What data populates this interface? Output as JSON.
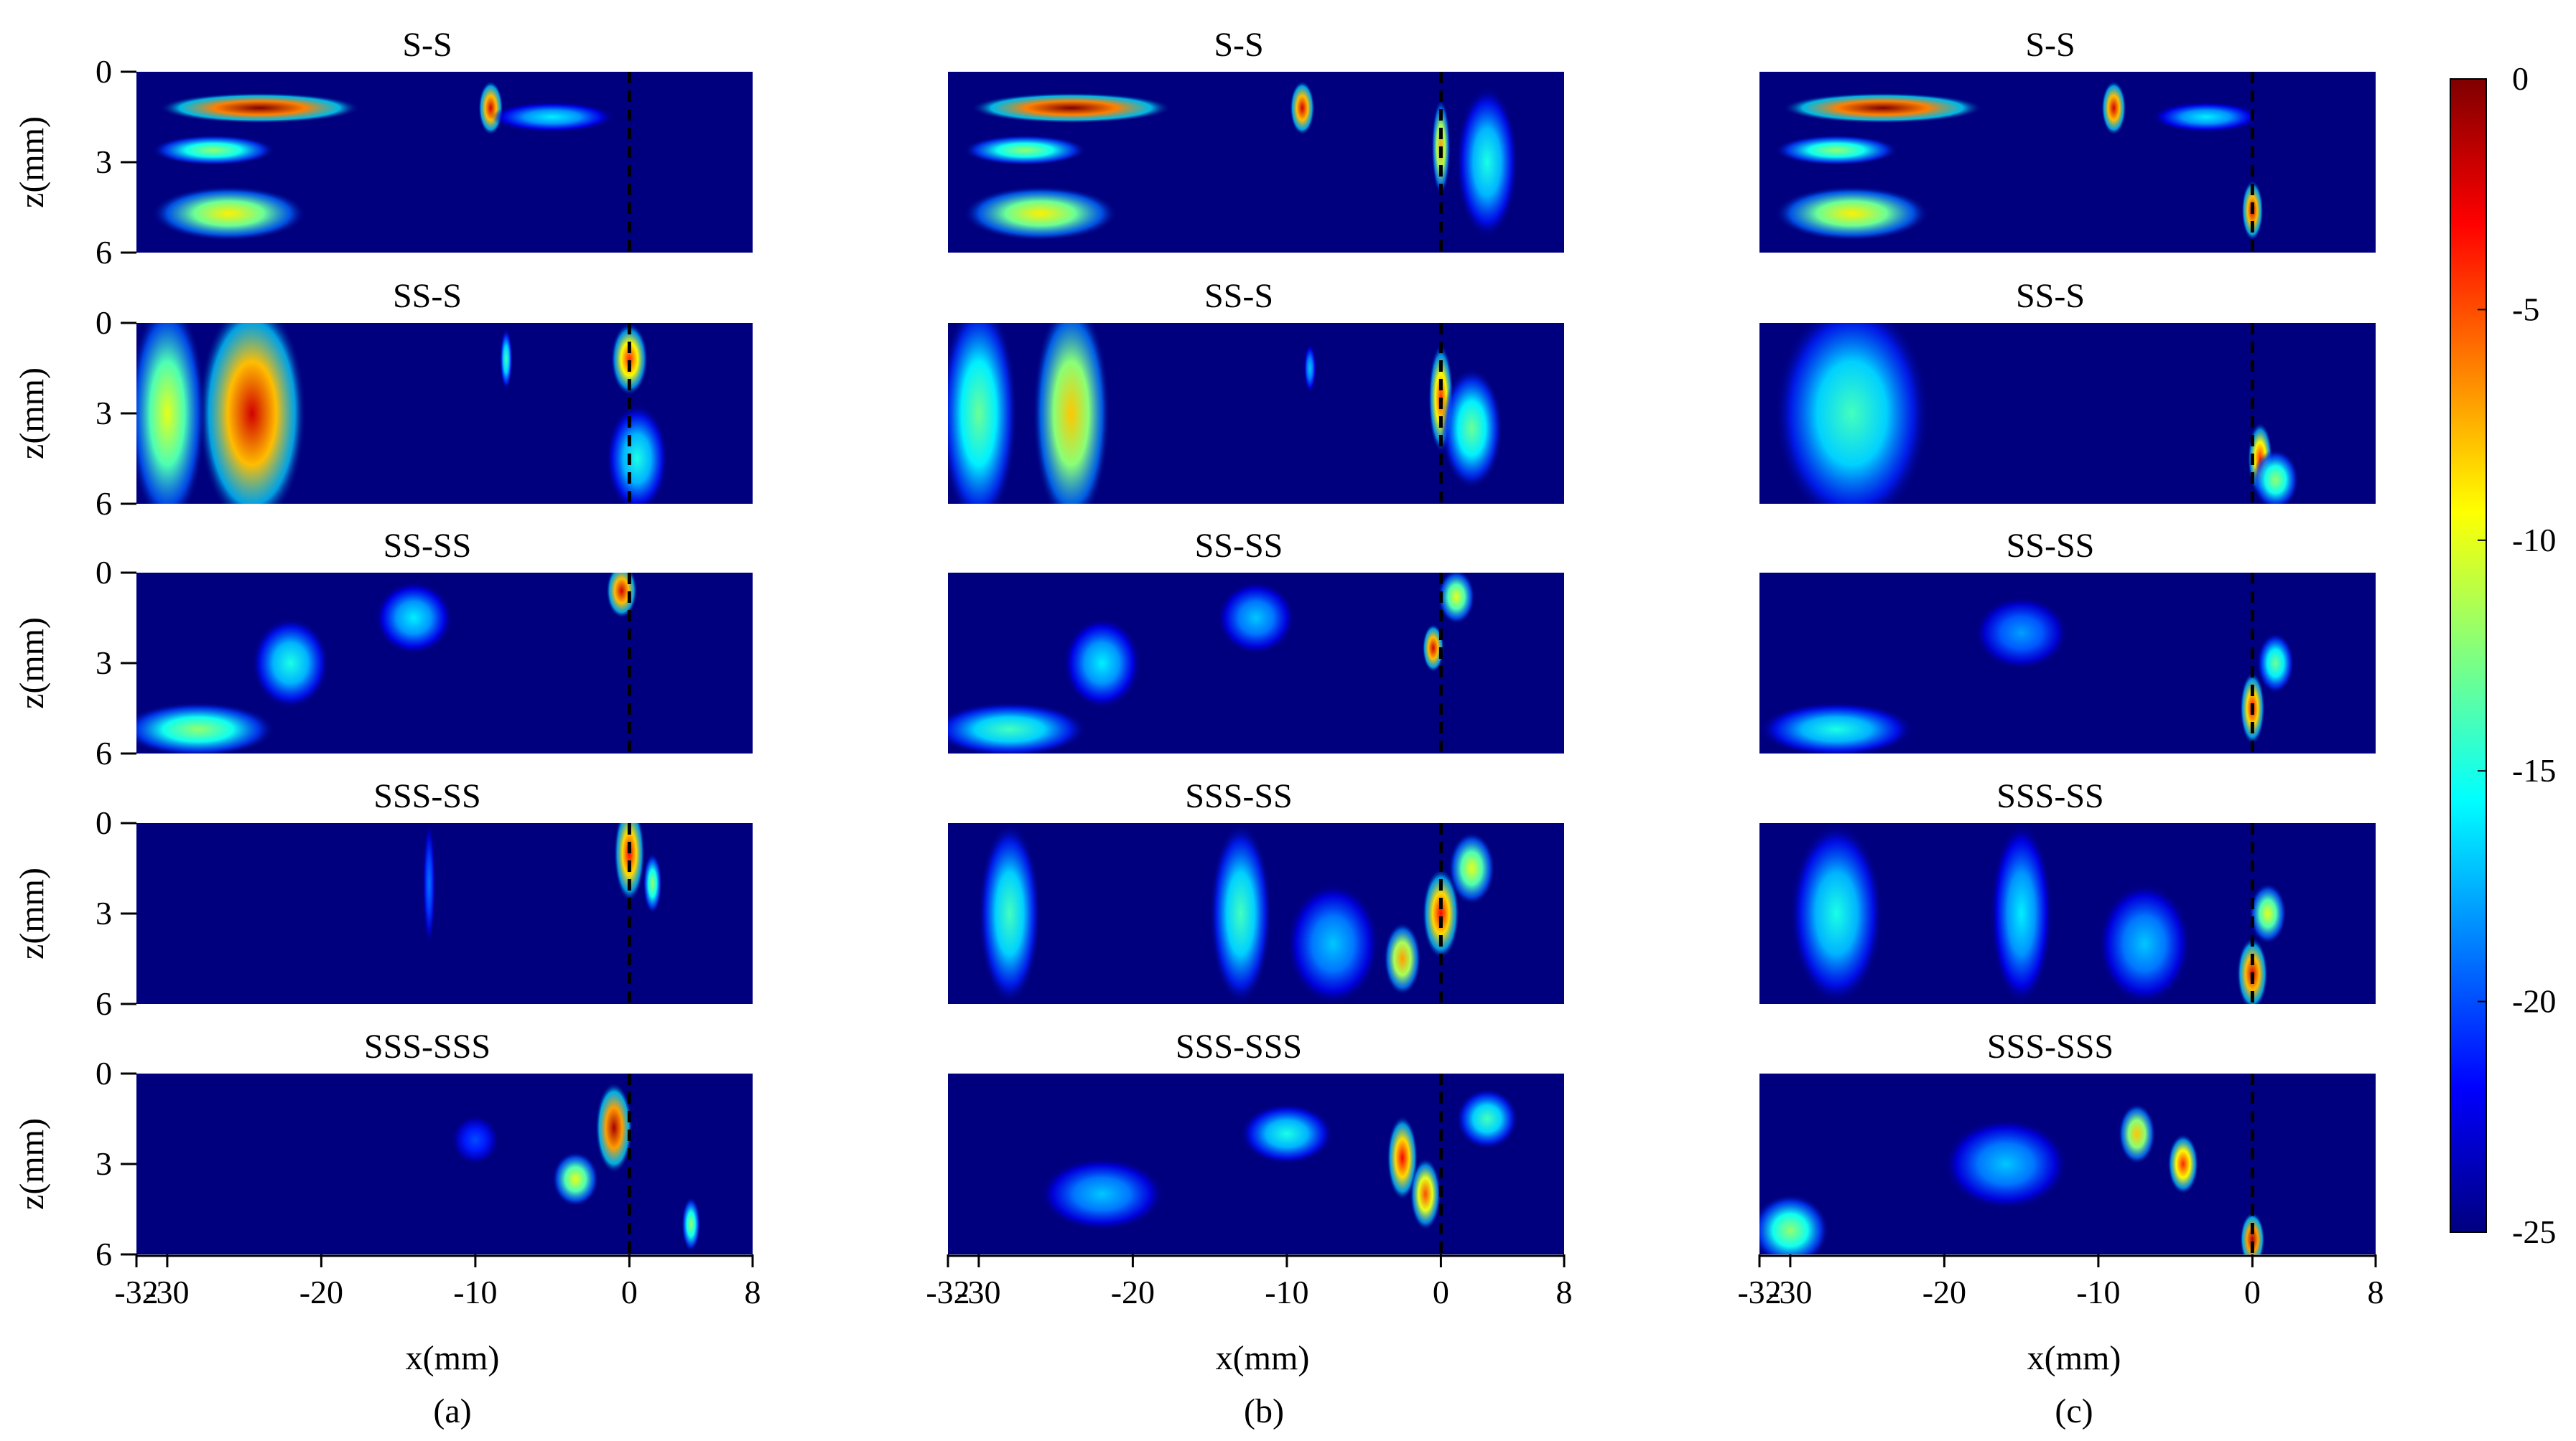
{
  "columns": [
    {
      "subcaption": "(a)",
      "xlabel": "x(mm)"
    },
    {
      "subcaption": "(b)",
      "xlabel": "x(mm)"
    },
    {
      "subcaption": "(c)",
      "xlabel": "x(mm)"
    }
  ],
  "row_titles": [
    "S-S",
    "SS-S",
    "SS-SS",
    "SSS-SS",
    "SSS-SSS"
  ],
  "ylabel": "z(mm)",
  "colorbar": {
    "ticks": [
      "0",
      "-5",
      "-10",
      "-15",
      "-20",
      "-25"
    ],
    "colormap": [
      "#00007f",
      "#0000ff",
      "#0080ff",
      "#00ffff",
      "#80ff80",
      "#ffff00",
      "#ff8000",
      "#ff0000",
      "#7f0000"
    ]
  },
  "chart_data": {
    "type": "heatmap",
    "layout": "5 rows x 3 columns of panels",
    "colorscale": "jet",
    "zrange": [
      -25,
      0
    ],
    "xlim": [
      -32,
      8
    ],
    "ylim": [
      0,
      6
    ],
    "x_ticks": [
      -32,
      -30,
      -20,
      -10,
      0,
      8
    ],
    "x_tick_labels": [
      "-32",
      "-30",
      "-20",
      "-10",
      "0",
      "8"
    ],
    "y_ticks": [
      0,
      3,
      6
    ],
    "y_tick_labels": [
      "0",
      "3",
      "6"
    ],
    "y_reversed": true,
    "reference_line_x": 0,
    "panels": [
      [
        {
          "title": "S-S",
          "blobs": [
            {
              "x": -24,
              "z": 1.2,
              "rx": 6.5,
              "rz": 0.5,
              "level": 0
            },
            {
              "x": -9,
              "z": 1.2,
              "rx": 0.8,
              "rz": 0.9,
              "level": -2
            },
            {
              "x": -26,
              "z": 4.7,
              "rx": 5.0,
              "rz": 0.9,
              "level": -9
            },
            {
              "x": -27,
              "z": 2.6,
              "rx": 4.0,
              "rz": 0.5,
              "level": -12
            },
            {
              "x": -5,
              "z": 1.5,
              "rx": 4.0,
              "rz": 0.5,
              "level": -16
            }
          ]
        },
        {
          "title": "SS-S",
          "blobs": [
            {
              "x": -24.5,
              "z": 3,
              "rx": 3.5,
              "rz": 3.8,
              "level": -2
            },
            {
              "x": -30,
              "z": 3,
              "rx": 2.5,
              "rz": 3.8,
              "level": -10
            },
            {
              "x": 0,
              "z": 1.2,
              "rx": 1.2,
              "rz": 1.2,
              "level": -4
            },
            {
              "x": 0.5,
              "z": 4.5,
              "rx": 2.0,
              "rz": 1.8,
              "level": -15
            },
            {
              "x": -8,
              "z": 1.2,
              "rx": 0.4,
              "rz": 1.0,
              "level": -14
            }
          ]
        },
        {
          "title": "SS-SS",
          "blobs": [
            {
              "x": -0.5,
              "z": 0.6,
              "rx": 1.0,
              "rz": 0.9,
              "level": -2
            },
            {
              "x": -28,
              "z": 5.2,
              "rx": 5.0,
              "rz": 0.9,
              "level": -12
            },
            {
              "x": -22,
              "z": 3.0,
              "rx": 2.5,
              "rz": 1.5,
              "level": -15
            },
            {
              "x": -14,
              "z": 1.5,
              "rx": 2.5,
              "rz": 1.2,
              "level": -16
            }
          ]
        },
        {
          "title": "SSS-SS",
          "blobs": [
            {
              "x": 0,
              "z": 1.0,
              "rx": 1.0,
              "rz": 1.6,
              "level": -3
            },
            {
              "x": 1.5,
              "z": 2.0,
              "rx": 0.6,
              "rz": 1.0,
              "level": -12
            },
            {
              "x": -13,
              "z": 2.0,
              "rx": 0.4,
              "rz": 2.0,
              "level": -19
            }
          ]
        },
        {
          "title": "SSS-SSS",
          "blobs": [
            {
              "x": -1,
              "z": 1.8,
              "rx": 1.2,
              "rz": 1.5,
              "level": -1
            },
            {
              "x": -3.5,
              "z": 3.5,
              "rx": 1.5,
              "rz": 0.9,
              "level": -10
            },
            {
              "x": 4,
              "z": 5.0,
              "rx": 0.6,
              "rz": 0.9,
              "level": -12
            },
            {
              "x": -10,
              "z": 2.2,
              "rx": 1.5,
              "rz": 0.8,
              "level": -20
            }
          ]
        }
      ],
      [
        {
          "title": "S-S",
          "blobs": [
            {
              "x": -24,
              "z": 1.2,
              "rx": 6.5,
              "rz": 0.5,
              "level": 0
            },
            {
              "x": -9,
              "z": 1.2,
              "rx": 0.8,
              "rz": 0.9,
              "level": -2
            },
            {
              "x": -26,
              "z": 4.7,
              "rx": 5.0,
              "rz": 0.9,
              "level": -9
            },
            {
              "x": -27,
              "z": 2.6,
              "rx": 4.0,
              "rz": 0.5,
              "level": -12
            },
            {
              "x": 0,
              "z": 2.5,
              "rx": 0.6,
              "rz": 1.6,
              "level": -7
            },
            {
              "x": 3,
              "z": 3.0,
              "rx": 2.0,
              "rz": 2.5,
              "level": -15
            }
          ]
        },
        {
          "title": "SS-S",
          "blobs": [
            {
              "x": -24,
              "z": 3,
              "rx": 2.5,
              "rz": 3.8,
              "level": -8
            },
            {
              "x": -30,
              "z": 3,
              "rx": 2.5,
              "rz": 3.8,
              "level": -13
            },
            {
              "x": 0,
              "z": 2.5,
              "rx": 0.8,
              "rz": 1.8,
              "level": -4
            },
            {
              "x": 2,
              "z": 3.5,
              "rx": 2.0,
              "rz": 2.0,
              "level": -13
            },
            {
              "x": -8.5,
              "z": 1.5,
              "rx": 0.4,
              "rz": 0.8,
              "level": -17
            }
          ]
        },
        {
          "title": "SS-SS",
          "blobs": [
            {
              "x": -0.5,
              "z": 2.5,
              "rx": 0.7,
              "rz": 0.8,
              "level": -2
            },
            {
              "x": 1,
              "z": 0.8,
              "rx": 1.2,
              "rz": 0.9,
              "level": -10
            },
            {
              "x": -28,
              "z": 5.2,
              "rx": 5.0,
              "rz": 0.9,
              "level": -14
            },
            {
              "x": -22,
              "z": 3.0,
              "rx": 2.5,
              "rz": 1.5,
              "level": -16
            },
            {
              "x": -12,
              "z": 1.5,
              "rx": 2.5,
              "rz": 1.2,
              "level": -17
            }
          ]
        },
        {
          "title": "SSS-SS",
          "blobs": [
            {
              "x": 0,
              "z": 3.0,
              "rx": 1.2,
              "rz": 1.5,
              "level": -3
            },
            {
              "x": -2.5,
              "z": 4.5,
              "rx": 1.2,
              "rz": 1.2,
              "level": -7
            },
            {
              "x": 2,
              "z": 1.5,
              "rx": 1.5,
              "rz": 1.2,
              "level": -10
            },
            {
              "x": -28,
              "z": 3.0,
              "rx": 2.0,
              "rz": 3.0,
              "level": -14
            },
            {
              "x": -13,
              "z": 3.0,
              "rx": 2.0,
              "rz": 3.0,
              "level": -14
            },
            {
              "x": -7,
              "z": 4.0,
              "rx": 3.0,
              "rz": 2.0,
              "level": -17
            }
          ]
        },
        {
          "title": "SSS-SSS",
          "blobs": [
            {
              "x": -2.5,
              "z": 2.8,
              "rx": 1.0,
              "rz": 1.4,
              "level": -3
            },
            {
              "x": -1,
              "z": 4.0,
              "rx": 1.0,
              "rz": 1.2,
              "level": -5
            },
            {
              "x": -10,
              "z": 2.0,
              "rx": 3.0,
              "rz": 1.0,
              "level": -15
            },
            {
              "x": -22,
              "z": 4.0,
              "rx": 4.0,
              "rz": 1.2,
              "level": -17
            },
            {
              "x": 3,
              "z": 1.5,
              "rx": 2.0,
              "rz": 1.0,
              "level": -14
            }
          ]
        }
      ],
      [
        {
          "title": "S-S",
          "blobs": [
            {
              "x": -24,
              "z": 1.2,
              "rx": 6.5,
              "rz": 0.5,
              "level": 0
            },
            {
              "x": -9,
              "z": 1.2,
              "rx": 0.8,
              "rz": 0.9,
              "level": -2
            },
            {
              "x": -26,
              "z": 4.7,
              "rx": 5.0,
              "rz": 0.9,
              "level": -9
            },
            {
              "x": -27,
              "z": 2.6,
              "rx": 4.0,
              "rz": 0.5,
              "level": -12
            },
            {
              "x": 0,
              "z": 4.6,
              "rx": 0.7,
              "rz": 1.0,
              "level": -2
            },
            {
              "x": -3,
              "z": 1.5,
              "rx": 3.5,
              "rz": 0.5,
              "level": -16
            }
          ]
        },
        {
          "title": "SS-S",
          "blobs": [
            {
              "x": -26,
              "z": 3,
              "rx": 5.0,
              "rz": 3.8,
              "level": -14
            },
            {
              "x": 0.5,
              "z": 4.5,
              "rx": 0.8,
              "rz": 1.2,
              "level": -4
            },
            {
              "x": 1.5,
              "z": 5.2,
              "rx": 1.5,
              "rz": 1.0,
              "level": -12
            }
          ]
        },
        {
          "title": "SS-SS",
          "blobs": [
            {
              "x": 0,
              "z": 4.5,
              "rx": 0.8,
              "rz": 1.2,
              "level": -3
            },
            {
              "x": 1.5,
              "z": 3.0,
              "rx": 1.2,
              "rz": 1.0,
              "level": -13
            },
            {
              "x": -27,
              "z": 5.2,
              "rx": 5.0,
              "rz": 0.9,
              "level": -15
            },
            {
              "x": -15,
              "z": 2.0,
              "rx": 3.0,
              "rz": 1.2,
              "level": -18
            }
          ]
        },
        {
          "title": "SSS-SS",
          "blobs": [
            {
              "x": 0,
              "z": 5.0,
              "rx": 1.0,
              "rz": 1.2,
              "level": -2
            },
            {
              "x": 1,
              "z": 3.0,
              "rx": 1.2,
              "rz": 1.0,
              "level": -10
            },
            {
              "x": -27,
              "z": 3.0,
              "rx": 3.0,
              "rz": 3.0,
              "level": -15
            },
            {
              "x": -15,
              "z": 3.0,
              "rx": 2.0,
              "rz": 3.0,
              "level": -16
            },
            {
              "x": -7,
              "z": 4.0,
              "rx": 3.0,
              "rz": 2.0,
              "level": -17
            }
          ]
        },
        {
          "title": "SSS-SSS",
          "blobs": [
            {
              "x": 0,
              "z": 5.5,
              "rx": 0.8,
              "rz": 0.9,
              "level": -1
            },
            {
              "x": -4.5,
              "z": 3.0,
              "rx": 1.0,
              "rz": 1.0,
              "level": -4
            },
            {
              "x": -7.5,
              "z": 2.0,
              "rx": 1.2,
              "rz": 1.0,
              "level": -8
            },
            {
              "x": -30,
              "z": 5.2,
              "rx": 2.5,
              "rz": 1.2,
              "level": -12
            },
            {
              "x": -16,
              "z": 3.0,
              "rx": 4.0,
              "rz": 1.5,
              "level": -17
            }
          ]
        }
      ]
    ]
  }
}
